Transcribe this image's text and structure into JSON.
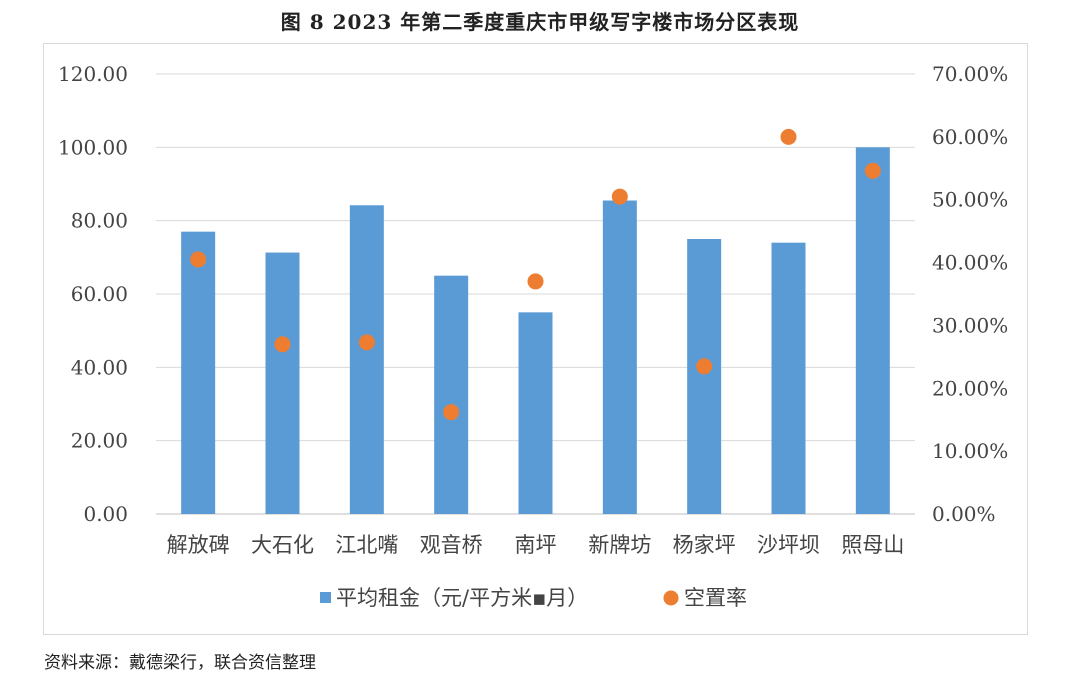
{
  "title": "图 8   2023 年第二季度重庆市甲级写字楼市场分区表现",
  "source": "资料来源：戴德梁行，联合资信整理",
  "colors": {
    "bar": "#5b9bd5",
    "dot": "#ed7d31",
    "grid": "#d9d9d9"
  },
  "chart_data": {
    "type": "bar",
    "categories": [
      "解放碑",
      "大石化",
      "江北嘴",
      "观音桥",
      "南坪",
      "新牌坊",
      "杨家坪",
      "沙坪坝",
      "照母山"
    ],
    "series": [
      {
        "name": "平均租金（元/平方米▪月）",
        "type": "bar",
        "axis": "left",
        "values": [
          77.0,
          71.3,
          84.2,
          65.0,
          55.0,
          85.5,
          75.0,
          74.0,
          100.0
        ]
      },
      {
        "name": "空置率",
        "type": "scatter",
        "axis": "right",
        "values": [
          0.405,
          0.27,
          0.273,
          0.162,
          0.37,
          0.505,
          0.235,
          0.6,
          0.546
        ]
      }
    ],
    "y_left": {
      "min": 0,
      "max": 120,
      "ticks": [
        "0.00",
        "20.00",
        "40.00",
        "60.00",
        "80.00",
        "100.00",
        "120.00"
      ]
    },
    "y_right": {
      "min": 0,
      "max": 0.7,
      "ticks": [
        "0.00%",
        "10.00%",
        "20.00%",
        "30.00%",
        "40.00%",
        "50.00%",
        "60.00%",
        "70.00%"
      ]
    },
    "grid": true,
    "legend": "bottom"
  }
}
